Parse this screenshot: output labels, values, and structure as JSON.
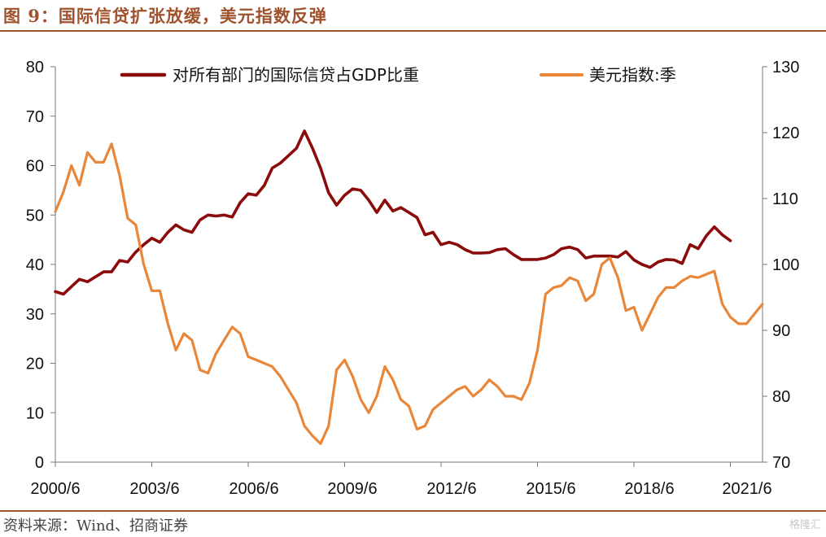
{
  "header": {
    "title": "图 9：国际信贷扩张放缓，美元指数反弹"
  },
  "footer": {
    "source": "资料来源：Wind、招商证券",
    "watermark": "格隆汇"
  },
  "colors": {
    "series1": "#8b0a0a",
    "series2": "#e8873a",
    "accent": "#a0522d"
  },
  "chart_data": {
    "type": "line",
    "title": "图 9：国际信贷扩张放缓，美元指数反弹",
    "x_start": "2000/6",
    "x_end": "2021/6",
    "x_tick_labels": [
      "2000/6",
      "2003/6",
      "2006/6",
      "2009/6",
      "2012/6",
      "2015/6",
      "2018/6",
      "2021/6"
    ],
    "left_axis": {
      "ylim": [
        0,
        80
      ],
      "ticks": [
        0,
        10,
        20,
        30,
        40,
        50,
        60,
        70,
        80
      ]
    },
    "right_axis": {
      "ylim": [
        70,
        130
      ],
      "ticks": [
        70,
        80,
        90,
        100,
        110,
        120,
        130
      ]
    },
    "series": [
      {
        "name": "对所有部门的国际信贷占GDP比重",
        "axis": "left",
        "color": "#8b0a0a",
        "values": [
          34.5,
          34.0,
          35.5,
          37.0,
          36.5,
          37.5,
          38.5,
          38.5,
          40.8,
          40.5,
          42.5,
          44.0,
          45.3,
          44.5,
          46.5,
          48.0,
          47.0,
          46.5,
          49.0,
          50.0,
          49.8,
          50.0,
          49.6,
          52.5,
          54.3,
          54.0,
          56.0,
          59.5,
          60.5,
          62.0,
          63.5,
          67.0,
          63.5,
          59.5,
          54.5,
          52.0,
          54.0,
          55.3,
          55.0,
          53.0,
          50.5,
          53.0,
          50.8,
          51.5,
          50.5,
          49.5,
          46.0,
          46.5,
          44.0,
          44.5,
          44.0,
          43.0,
          42.3,
          42.3,
          42.4,
          43.0,
          43.2,
          42.0,
          41.0,
          41.0,
          41.0,
          41.3,
          42.0,
          43.2,
          43.5,
          43.0,
          41.3,
          41.7,
          41.7,
          41.7,
          41.5,
          42.6,
          40.9,
          40.0,
          39.4,
          40.5,
          41.0,
          40.9,
          40.2,
          44.0,
          43.2,
          45.8,
          47.6,
          46.0,
          44.8
        ],
        "end_index": 84
      },
      {
        "name": "美元指数:季",
        "axis": "right",
        "color": "#e8873a",
        "values": [
          108.0,
          111.0,
          115.0,
          112.0,
          117.0,
          115.5,
          115.5,
          118.3,
          113.5,
          107.0,
          106.0,
          100.0,
          96.0,
          96.0,
          91.0,
          87.0,
          89.5,
          88.5,
          84.0,
          83.5,
          86.5,
          88.5,
          90.5,
          89.5,
          86.0,
          85.5,
          85.0,
          84.5,
          83.0,
          81.0,
          79.0,
          75.5,
          74.0,
          72.8,
          75.5,
          84.0,
          85.5,
          83.0,
          79.5,
          77.5,
          80.0,
          84.5,
          82.5,
          79.5,
          78.5,
          75.0,
          75.5,
          78.0,
          79.0,
          80.0,
          81.0,
          81.5,
          80.0,
          81.0,
          82.5,
          81.5,
          80.0,
          80.0,
          79.5,
          82.0,
          87.0,
          95.5,
          96.5,
          96.8,
          98.0,
          97.5,
          94.5,
          95.5,
          100.0,
          101.0,
          98.0,
          93.0,
          93.5,
          90.0,
          92.5,
          95.0,
          96.5,
          96.5,
          97.5,
          98.2,
          98.0,
          98.5,
          99.0,
          94.0,
          92.0,
          91.0,
          91.0,
          92.5,
          94.0
        ],
        "end_index": 88
      }
    ]
  }
}
